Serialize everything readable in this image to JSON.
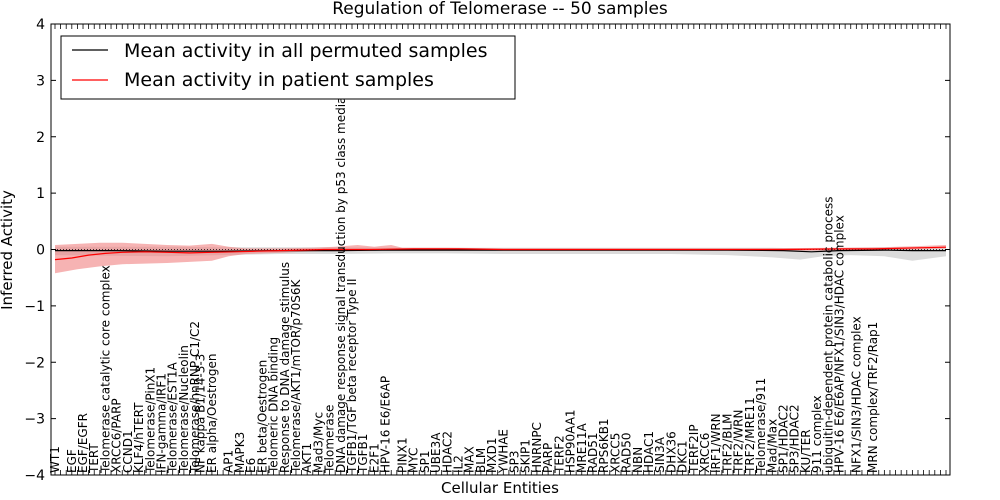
{
  "chart_data": {
    "type": "line",
    "title": "Regulation of Telomerase -- 50 samples",
    "xlabel": "Cellular Entities",
    "ylabel": "Inferred Activity",
    "ylim": [
      -4,
      4
    ],
    "yticks": [
      "4",
      "3",
      "2",
      "1",
      "0",
      "−1",
      "−2",
      "−3",
      "−4"
    ],
    "legend": {
      "placement": "top-left",
      "entries": [
        {
          "name": "Mean activity in all permuted samples",
          "color": "#000000"
        },
        {
          "name": "Mean activity in patient samples",
          "color": "#ff0000"
        }
      ]
    },
    "colors": {
      "patient": "#ff0000",
      "patient_band": "#f08080",
      "permuted_band": "#bdbdbd",
      "permuted": "#000000"
    },
    "n_points": 160,
    "patient_series": [
      [
        0,
        -0.18
      ],
      [
        3,
        -0.15
      ],
      [
        6,
        -0.1
      ],
      [
        9,
        -0.07
      ],
      [
        12,
        -0.05
      ],
      [
        16,
        -0.04
      ],
      [
        20,
        -0.05
      ],
      [
        24,
        -0.06
      ],
      [
        28,
        -0.05
      ],
      [
        32,
        -0.04
      ],
      [
        36,
        -0.03
      ],
      [
        40,
        -0.02
      ],
      [
        44,
        -0.01
      ],
      [
        48,
        0.0
      ],
      [
        56,
        0.0
      ],
      [
        64,
        0.01
      ],
      [
        72,
        0.01
      ],
      [
        80,
        0.0
      ],
      [
        90,
        0.0
      ],
      [
        100,
        0.0
      ],
      [
        110,
        0.0
      ],
      [
        120,
        0.0
      ],
      [
        130,
        0.0
      ],
      [
        140,
        0.01
      ],
      [
        146,
        0.01
      ],
      [
        150,
        0.02
      ],
      [
        154,
        0.03
      ],
      [
        159,
        0.04
      ]
    ],
    "patient_band": [
      [
        0,
        0.08,
        -0.42
      ],
      [
        4,
        0.1,
        -0.35
      ],
      [
        8,
        0.12,
        -0.3
      ],
      [
        12,
        0.12,
        -0.26
      ],
      [
        16,
        0.1,
        -0.25
      ],
      [
        20,
        0.08,
        -0.24
      ],
      [
        24,
        0.07,
        -0.22
      ],
      [
        28,
        0.1,
        -0.2
      ],
      [
        31,
        0.05,
        -0.12
      ],
      [
        34,
        0.02,
        -0.08
      ],
      [
        40,
        0.02,
        -0.06
      ],
      [
        46,
        0.03,
        -0.03
      ],
      [
        50,
        0.05,
        -0.02
      ],
      [
        54,
        0.08,
        -0.02
      ],
      [
        57,
        0.05,
        -0.02
      ],
      [
        60,
        0.08,
        -0.02
      ],
      [
        62,
        0.03,
        -0.02
      ],
      [
        70,
        0.03,
        -0.02
      ],
      [
        80,
        0.02,
        -0.02
      ],
      [
        100,
        0.02,
        -0.02
      ],
      [
        120,
        0.02,
        -0.02
      ],
      [
        140,
        0.03,
        -0.02
      ],
      [
        148,
        0.04,
        -0.01
      ],
      [
        154,
        0.06,
        0.0
      ],
      [
        159,
        0.08,
        0.02
      ]
    ],
    "permuted_series": [
      [
        0,
        -0.02
      ],
      [
        10,
        -0.02
      ],
      [
        20,
        -0.03
      ],
      [
        30,
        -0.03
      ],
      [
        40,
        -0.02
      ],
      [
        50,
        -0.02
      ],
      [
        60,
        -0.01
      ],
      [
        70,
        -0.01
      ],
      [
        80,
        -0.01
      ],
      [
        90,
        -0.01
      ],
      [
        100,
        -0.01
      ],
      [
        110,
        -0.01
      ],
      [
        120,
        -0.01
      ],
      [
        130,
        -0.02
      ],
      [
        135,
        -0.04
      ],
      [
        140,
        -0.02
      ],
      [
        148,
        -0.01
      ],
      [
        153,
        -0.02
      ],
      [
        159,
        -0.02
      ]
    ],
    "permuted_band": [
      [
        0,
        0.05,
        -0.1
      ],
      [
        10,
        0.05,
        -0.11
      ],
      [
        20,
        0.05,
        -0.12
      ],
      [
        30,
        0.04,
        -0.1
      ],
      [
        40,
        0.04,
        -0.08
      ],
      [
        50,
        0.04,
        -0.08
      ],
      [
        60,
        0.03,
        -0.07
      ],
      [
        70,
        0.03,
        -0.07
      ],
      [
        80,
        0.03,
        -0.08
      ],
      [
        90,
        0.03,
        -0.08
      ],
      [
        100,
        0.03,
        -0.08
      ],
      [
        110,
        0.03,
        -0.08
      ],
      [
        120,
        0.03,
        -0.1
      ],
      [
        128,
        0.03,
        -0.14
      ],
      [
        133,
        0.02,
        -0.18
      ],
      [
        137,
        0.02,
        -0.12
      ],
      [
        142,
        0.03,
        -0.1
      ],
      [
        148,
        0.04,
        -0.12
      ],
      [
        153,
        0.04,
        -0.2
      ],
      [
        159,
        0.04,
        -0.12
      ]
    ],
    "entity_labels": [
      {
        "i": 0,
        "text": "WT1"
      },
      {
        "i": 3,
        "text": "EGF"
      },
      {
        "i": 5,
        "text": "EGF/EGFR"
      },
      {
        "i": 7,
        "text": "TERT"
      },
      {
        "i": 9,
        "text": "Telomerase catalytic core complex"
      },
      {
        "i": 11,
        "text": "XRCC6/PARP"
      },
      {
        "i": 13,
        "text": "CCND1"
      },
      {
        "i": 15,
        "text": "KLF4/hTERT"
      },
      {
        "i": 17,
        "text": "Telomerase/PinX1"
      },
      {
        "i": 19,
        "text": "IFN-gamma/IRF1"
      },
      {
        "i": 21,
        "text": "Telomerase/EST1A"
      },
      {
        "i": 23,
        "text": "Telomerase/Nucleolin"
      },
      {
        "i": 25,
        "text": "Telomerase/hnRNP C1/C2"
      },
      {
        "i": 26,
        "text": "NF kappa B1/14-3-3"
      },
      {
        "i": 28,
        "text": "ER alpha/Oestrogen"
      },
      {
        "i": 31,
        "text": "AP1"
      },
      {
        "i": 33,
        "text": "MAPK3"
      },
      {
        "i": 35,
        "text": "E6"
      },
      {
        "i": 37,
        "text": "ER beta/Oestrogen"
      },
      {
        "i": 39,
        "text": "Telomeric DNA binding"
      },
      {
        "i": 41,
        "text": "Response to DNA damage stimulus"
      },
      {
        "i": 43,
        "text": "Telomerase/AKT1/mTOR/p70S6K"
      },
      {
        "i": 45,
        "text": "AKT1"
      },
      {
        "i": 47,
        "text": "Mad3/Myc"
      },
      {
        "i": 49,
        "text": "Telomerase"
      },
      {
        "i": 51,
        "text": "DNA damage response signal transduction by p53 class mediator"
      },
      {
        "i": 53,
        "text": "TGFB1/TGF beta receptor Type II"
      },
      {
        "i": 55,
        "text": "TGFB1"
      },
      {
        "i": 57,
        "text": "E2F1"
      },
      {
        "i": 59,
        "text": "HPV-16 E6/E6AP"
      },
      {
        "i": 62,
        "text": "PINX1"
      },
      {
        "i": 64,
        "text": "MYC"
      },
      {
        "i": 66,
        "text": "SP1"
      },
      {
        "i": 68,
        "text": "UBE3A"
      },
      {
        "i": 70,
        "text": "HDAC2"
      },
      {
        "i": 72,
        "text": "IL2"
      },
      {
        "i": 74,
        "text": "MAX"
      },
      {
        "i": 76,
        "text": "BLM"
      },
      {
        "i": 78,
        "text": "MXD1"
      },
      {
        "i": 80,
        "text": "YWHAE"
      },
      {
        "i": 82,
        "text": "SP3"
      },
      {
        "i": 84,
        "text": "SKIP1"
      },
      {
        "i": 86,
        "text": "HNRNPC"
      },
      {
        "i": 88,
        "text": "PARP"
      },
      {
        "i": 90,
        "text": "TERF2"
      },
      {
        "i": 92,
        "text": "HSP90AA1"
      },
      {
        "i": 94,
        "text": "MRE11A"
      },
      {
        "i": 96,
        "text": "RAD51"
      },
      {
        "i": 98,
        "text": "RPS6KB1"
      },
      {
        "i": 100,
        "text": "XRCC5"
      },
      {
        "i": 102,
        "text": "RAD50"
      },
      {
        "i": 104,
        "text": "NBN"
      },
      {
        "i": 106,
        "text": "HDAC1"
      },
      {
        "i": 108,
        "text": "SIN3A"
      },
      {
        "i": 110,
        "text": "DHX36"
      },
      {
        "i": 112,
        "text": "DKC1"
      },
      {
        "i": 114,
        "text": "TERF2IP"
      },
      {
        "i": 116,
        "text": "XRCC6"
      },
      {
        "i": 118,
        "text": "IRF1/WRN"
      },
      {
        "i": 120,
        "text": "TRF2/BLM"
      },
      {
        "i": 122,
        "text": "TRF2/WRN"
      },
      {
        "i": 124,
        "text": "TRF2/MRE11"
      },
      {
        "i": 126,
        "text": "Telomerase/911"
      },
      {
        "i": 128,
        "text": "Mad/Max"
      },
      {
        "i": 130,
        "text": "SP1/HDAC2"
      },
      {
        "i": 132,
        "text": "SP3/HDAC2"
      },
      {
        "i": 134,
        "text": "KU/TER"
      },
      {
        "i": 136,
        "text": "911 complex"
      },
      {
        "i": 138,
        "text": "ubiquitin-dependent protein catabolic process"
      },
      {
        "i": 140,
        "text": "HPV-16 E6/E6AP/NFX1/SIN3/HDAC complex"
      },
      {
        "i": 143,
        "text": "NFX1/SIN3/HDAC complex"
      },
      {
        "i": 146,
        "text": "MRN complex/TRF2/Rap1"
      }
    ]
  }
}
